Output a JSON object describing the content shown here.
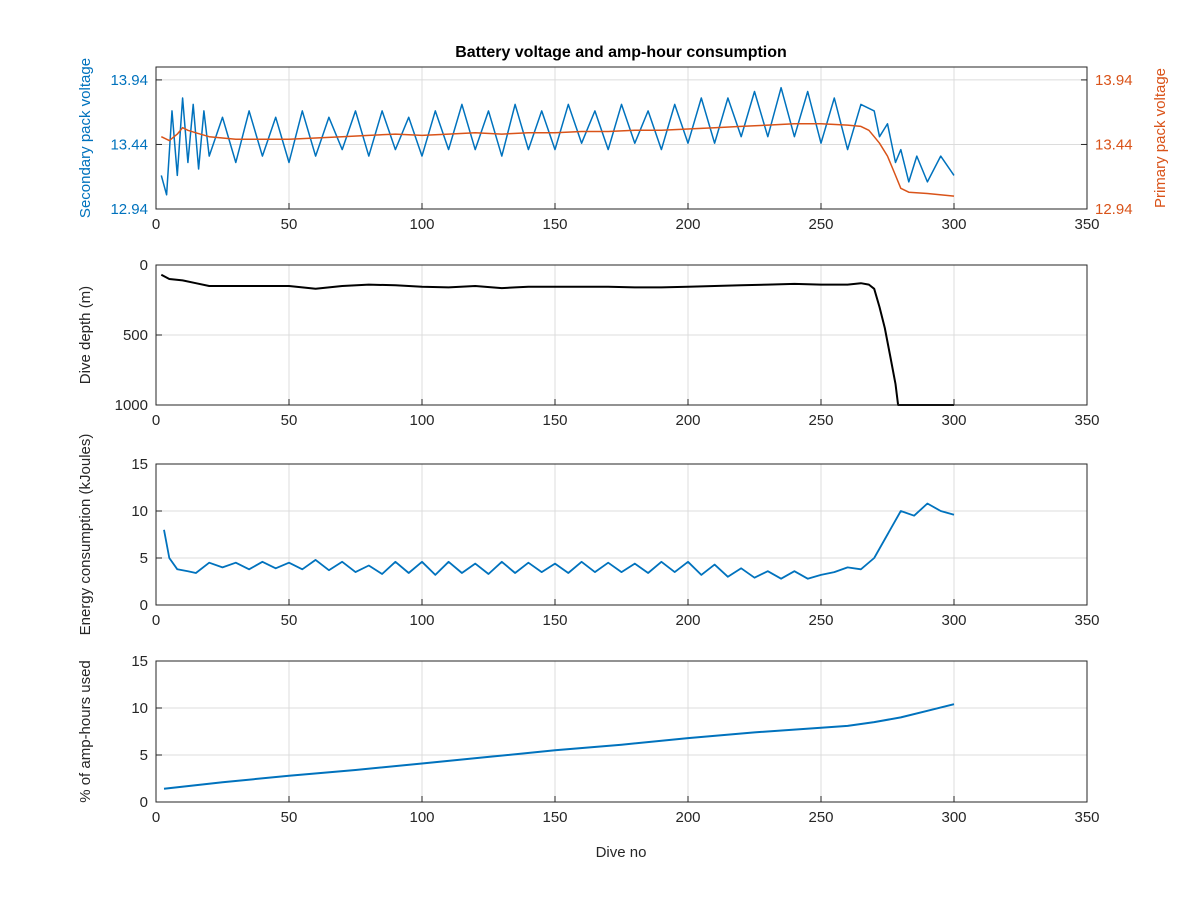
{
  "colors": {
    "secondary": "#0072BD",
    "primary": "#D95319",
    "depth": "#000000",
    "energy": "#0072BD",
    "amphours": "#0072BD",
    "axis": "#262626",
    "grid": "#dcdcdc"
  },
  "chart_data": [
    {
      "type": "line",
      "title": "Battery voltage and amp-hour consumption",
      "xlabel": "",
      "ylabel": "Secondary pack voltage",
      "ylabel_right": "Primary pack voltage",
      "xlim": [
        0,
        350
      ],
      "ylim": [
        12.94,
        14.04
      ],
      "ylim_right": [
        12.94,
        14.04
      ],
      "xticks": [
        "0",
        "50",
        "100",
        "150",
        "200",
        "250",
        "300",
        "350"
      ],
      "yticks": [
        "12.94",
        "13.44",
        "13.94"
      ],
      "yticks_right": [
        "12.94",
        "13.44",
        "13.94"
      ],
      "grid": true,
      "series": [
        {
          "name": "",
          "axis": "left",
          "x": [
            2,
            4,
            6,
            8,
            10,
            12,
            14,
            16,
            18,
            20,
            25,
            30,
            35,
            40,
            45,
            50,
            55,
            60,
            65,
            70,
            75,
            80,
            85,
            90,
            95,
            100,
            105,
            110,
            115,
            120,
            125,
            130,
            135,
            140,
            145,
            150,
            155,
            160,
            165,
            170,
            175,
            180,
            185,
            190,
            195,
            200,
            205,
            210,
            215,
            220,
            225,
            230,
            235,
            240,
            245,
            250,
            255,
            260,
            265,
            270,
            272,
            275,
            278,
            280,
            283,
            286,
            290,
            295,
            300
          ],
          "y": [
            13.2,
            13.05,
            13.7,
            13.2,
            13.8,
            13.3,
            13.75,
            13.25,
            13.7,
            13.35,
            13.65,
            13.3,
            13.7,
            13.35,
            13.65,
            13.3,
            13.7,
            13.35,
            13.65,
            13.4,
            13.7,
            13.35,
            13.7,
            13.4,
            13.65,
            13.35,
            13.7,
            13.4,
            13.75,
            13.4,
            13.7,
            13.35,
            13.75,
            13.4,
            13.7,
            13.4,
            13.75,
            13.45,
            13.7,
            13.4,
            13.75,
            13.45,
            13.7,
            13.4,
            13.75,
            13.45,
            13.8,
            13.45,
            13.8,
            13.5,
            13.85,
            13.5,
            13.88,
            13.5,
            13.85,
            13.45,
            13.8,
            13.4,
            13.75,
            13.7,
            13.5,
            13.6,
            13.3,
            13.4,
            13.15,
            13.35,
            13.15,
            13.35,
            13.2
          ]
        },
        {
          "name": "",
          "axis": "right",
          "x": [
            2,
            5,
            8,
            10,
            12,
            15,
            20,
            30,
            40,
            50,
            60,
            70,
            80,
            90,
            100,
            110,
            120,
            130,
            140,
            150,
            160,
            170,
            180,
            190,
            200,
            210,
            220,
            230,
            240,
            250,
            260,
            265,
            268,
            270,
            272,
            275,
            278,
            280,
            283,
            290,
            300
          ],
          "y": [
            13.5,
            13.47,
            13.52,
            13.57,
            13.55,
            13.53,
            13.5,
            13.48,
            13.48,
            13.48,
            13.49,
            13.5,
            13.51,
            13.52,
            13.51,
            13.52,
            13.53,
            13.52,
            13.53,
            13.53,
            13.54,
            13.54,
            13.55,
            13.55,
            13.56,
            13.57,
            13.58,
            13.59,
            13.6,
            13.6,
            13.59,
            13.58,
            13.55,
            13.5,
            13.45,
            13.35,
            13.2,
            13.1,
            13.07,
            13.06,
            13.04
          ]
        }
      ]
    },
    {
      "type": "line",
      "title": "",
      "xlabel": "",
      "ylabel": "Dive depth (m)",
      "xlim": [
        0,
        350
      ],
      "ylim": [
        0,
        1000
      ],
      "y_reversed": true,
      "xticks": [
        "0",
        "50",
        "100",
        "150",
        "200",
        "250",
        "300",
        "350"
      ],
      "yticks": [
        "0",
        "500",
        "1000"
      ],
      "grid": true,
      "series": [
        {
          "name": "",
          "x": [
            2,
            5,
            10,
            15,
            20,
            30,
            40,
            50,
            55,
            60,
            65,
            70,
            80,
            90,
            100,
            110,
            120,
            130,
            135,
            140,
            150,
            160,
            170,
            180,
            190,
            200,
            210,
            220,
            230,
            240,
            250,
            260,
            265,
            268,
            270,
            272,
            274,
            276,
            278,
            279,
            280,
            290,
            300
          ],
          "y": [
            70,
            100,
            110,
            130,
            150,
            150,
            150,
            150,
            160,
            170,
            160,
            150,
            140,
            145,
            155,
            160,
            150,
            165,
            160,
            155,
            155,
            155,
            155,
            160,
            160,
            155,
            150,
            145,
            140,
            135,
            140,
            140,
            130,
            140,
            170,
            300,
            450,
            650,
            850,
            1000,
            1000,
            1000,
            1000
          ]
        }
      ]
    },
    {
      "type": "line",
      "title": "",
      "xlabel": "",
      "ylabel": "Energy consumption (kJoules)",
      "xlim": [
        0,
        350
      ],
      "ylim": [
        0,
        15
      ],
      "xticks": [
        "0",
        "50",
        "100",
        "150",
        "200",
        "250",
        "300",
        "350"
      ],
      "yticks": [
        "0",
        "5",
        "10",
        "15"
      ],
      "grid": true,
      "series": [
        {
          "name": "",
          "x": [
            3,
            5,
            8,
            12,
            15,
            20,
            25,
            30,
            35,
            40,
            45,
            50,
            55,
            60,
            65,
            70,
            75,
            80,
            85,
            90,
            95,
            100,
            105,
            110,
            115,
            120,
            125,
            130,
            135,
            140,
            145,
            150,
            155,
            160,
            165,
            170,
            175,
            180,
            185,
            190,
            195,
            200,
            205,
            210,
            215,
            220,
            225,
            230,
            235,
            240,
            245,
            250,
            255,
            260,
            265,
            270,
            275,
            280,
            285,
            290,
            295,
            300
          ],
          "y": [
            8,
            5,
            3.8,
            3.6,
            3.4,
            4.5,
            4.0,
            4.5,
            3.8,
            4.6,
            3.9,
            4.5,
            3.8,
            4.8,
            3.7,
            4.6,
            3.5,
            4.2,
            3.3,
            4.6,
            3.4,
            4.6,
            3.2,
            4.6,
            3.4,
            4.4,
            3.3,
            4.6,
            3.4,
            4.5,
            3.5,
            4.4,
            3.4,
            4.6,
            3.5,
            4.5,
            3.5,
            4.4,
            3.4,
            4.6,
            3.5,
            4.6,
            3.2,
            4.3,
            3.0,
            3.9,
            2.9,
            3.6,
            2.8,
            3.6,
            2.8,
            3.2,
            3.5,
            4.0,
            3.8,
            5.0,
            7.5,
            10.0,
            9.5,
            10.8,
            10.0,
            9.6
          ]
        }
      ]
    },
    {
      "type": "line",
      "title": "",
      "xlabel": "Dive no",
      "ylabel": "% of amp-hours used",
      "xlim": [
        0,
        350
      ],
      "ylim": [
        0,
        15
      ],
      "xticks": [
        "0",
        "50",
        "100",
        "150",
        "200",
        "250",
        "300",
        "350"
      ],
      "yticks": [
        "0",
        "5",
        "10",
        "15"
      ],
      "grid": true,
      "series": [
        {
          "name": "",
          "x": [
            3,
            25,
            50,
            75,
            100,
            125,
            150,
            175,
            200,
            225,
            250,
            260,
            270,
            280,
            290,
            300
          ],
          "y": [
            1.4,
            2.1,
            2.8,
            3.4,
            4.1,
            4.8,
            5.5,
            6.1,
            6.8,
            7.4,
            7.9,
            8.1,
            8.5,
            9.0,
            9.7,
            10.4
          ]
        }
      ]
    }
  ]
}
